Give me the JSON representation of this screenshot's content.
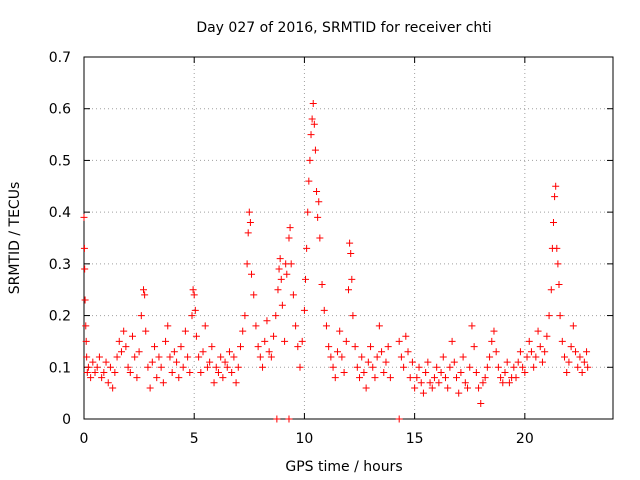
{
  "chart_data": {
    "type": "scatter",
    "title": "Day 027 of 2016, SRMTID for receiver chti",
    "xlabel": "GPS time / hours",
    "ylabel": "SRMTID / TECUs",
    "xlim": [
      0,
      24
    ],
    "ylim": [
      0,
      0.7
    ],
    "grid": true,
    "marker": "+",
    "color": "#ff0000",
    "xticks": [
      0,
      5,
      10,
      15,
      20
    ],
    "xtick_labels": [
      "0",
      "5",
      "10",
      "15",
      "20"
    ],
    "yticks": [
      0,
      0.1,
      0.2,
      0.3,
      0.4,
      0.5,
      0.6,
      0.7
    ],
    "ytick_labels": [
      "0",
      "0.1",
      "0.2",
      "0.3",
      "0.4",
      "0.5",
      "0.6",
      "0.7"
    ],
    "series": [
      {
        "name": "SRMTID",
        "points": [
          [
            0.0,
            0.39
          ],
          [
            0.02,
            0.33
          ],
          [
            0.03,
            0.29
          ],
          [
            0.05,
            0.23
          ],
          [
            0.08,
            0.18
          ],
          [
            0.1,
            0.15
          ],
          [
            0.12,
            0.12
          ],
          [
            0.15,
            0.09
          ],
          [
            0.2,
            0.1
          ],
          [
            0.3,
            0.08
          ],
          [
            0.4,
            0.11
          ],
          [
            0.5,
            0.09
          ],
          [
            0.6,
            0.1
          ],
          [
            0.7,
            0.12
          ],
          [
            0.8,
            0.08
          ],
          [
            0.9,
            0.09
          ],
          [
            1.0,
            0.11
          ],
          [
            1.1,
            0.07
          ],
          [
            1.2,
            0.1
          ],
          [
            1.3,
            0.06
          ],
          [
            1.4,
            0.09
          ],
          [
            1.5,
            0.12
          ],
          [
            1.6,
            0.15
          ],
          [
            1.7,
            0.13
          ],
          [
            1.8,
            0.17
          ],
          [
            1.9,
            0.14
          ],
          [
            2.0,
            0.1
          ],
          [
            2.1,
            0.09
          ],
          [
            2.2,
            0.16
          ],
          [
            2.3,
            0.12
          ],
          [
            2.4,
            0.08
          ],
          [
            2.5,
            0.13
          ],
          [
            2.6,
            0.2
          ],
          [
            2.7,
            0.25
          ],
          [
            2.75,
            0.24
          ],
          [
            2.8,
            0.17
          ],
          [
            2.9,
            0.1
          ],
          [
            3.0,
            0.06
          ],
          [
            3.1,
            0.11
          ],
          [
            3.2,
            0.14
          ],
          [
            3.3,
            0.08
          ],
          [
            3.4,
            0.12
          ],
          [
            3.5,
            0.1
          ],
          [
            3.6,
            0.07
          ],
          [
            3.7,
            0.15
          ],
          [
            3.8,
            0.18
          ],
          [
            3.9,
            0.12
          ],
          [
            4.0,
            0.09
          ],
          [
            4.1,
            0.13
          ],
          [
            4.2,
            0.11
          ],
          [
            4.3,
            0.08
          ],
          [
            4.4,
            0.14
          ],
          [
            4.5,
            0.1
          ],
          [
            4.6,
            0.17
          ],
          [
            4.7,
            0.12
          ],
          [
            4.8,
            0.09
          ],
          [
            4.9,
            0.2
          ],
          [
            4.95,
            0.25
          ],
          [
            5.0,
            0.24
          ],
          [
            5.05,
            0.21
          ],
          [
            5.1,
            0.16
          ],
          [
            5.2,
            0.12
          ],
          [
            5.3,
            0.09
          ],
          [
            5.4,
            0.13
          ],
          [
            5.5,
            0.18
          ],
          [
            5.6,
            0.1
          ],
          [
            5.7,
            0.11
          ],
          [
            5.8,
            0.14
          ],
          [
            5.9,
            0.07
          ],
          [
            6.0,
            0.1
          ],
          [
            6.1,
            0.09
          ],
          [
            6.2,
            0.12
          ],
          [
            6.3,
            0.08
          ],
          [
            6.4,
            0.11
          ],
          [
            6.5,
            0.1
          ],
          [
            6.6,
            0.13
          ],
          [
            6.7,
            0.09
          ],
          [
            6.8,
            0.12
          ],
          [
            6.9,
            0.07
          ],
          [
            7.0,
            0.1
          ],
          [
            7.1,
            0.14
          ],
          [
            7.2,
            0.17
          ],
          [
            7.3,
            0.2
          ],
          [
            7.4,
            0.3
          ],
          [
            7.45,
            0.36
          ],
          [
            7.5,
            0.4
          ],
          [
            7.55,
            0.38
          ],
          [
            7.6,
            0.28
          ],
          [
            7.7,
            0.24
          ],
          [
            7.8,
            0.18
          ],
          [
            7.9,
            0.14
          ],
          [
            8.0,
            0.12
          ],
          [
            8.1,
            0.1
          ],
          [
            8.2,
            0.15
          ],
          [
            8.3,
            0.19
          ],
          [
            8.4,
            0.13
          ],
          [
            8.5,
            0.12
          ],
          [
            8.6,
            0.16
          ],
          [
            8.7,
            0.2
          ],
          [
            8.8,
            0.25
          ],
          [
            8.85,
            0.29
          ],
          [
            8.9,
            0.31
          ],
          [
            8.95,
            0.27
          ],
          [
            9.0,
            0.22
          ],
          [
            9.1,
            0.15
          ],
          [
            9.15,
            0.3
          ],
          [
            9.2,
            0.28
          ],
          [
            9.3,
            0.35
          ],
          [
            9.35,
            0.37
          ],
          [
            9.4,
            0.3
          ],
          [
            9.5,
            0.24
          ],
          [
            9.6,
            0.18
          ],
          [
            9.7,
            0.14
          ],
          [
            9.8,
            0.1
          ],
          [
            9.9,
            0.15
          ],
          [
            10.0,
            0.21
          ],
          [
            10.05,
            0.27
          ],
          [
            10.1,
            0.33
          ],
          [
            10.15,
            0.4
          ],
          [
            10.2,
            0.46
          ],
          [
            10.25,
            0.5
          ],
          [
            10.3,
            0.55
          ],
          [
            10.35,
            0.58
          ],
          [
            10.4,
            0.61
          ],
          [
            10.45,
            0.57
          ],
          [
            10.5,
            0.52
          ],
          [
            10.55,
            0.44
          ],
          [
            10.6,
            0.39
          ],
          [
            10.65,
            0.42
          ],
          [
            10.7,
            0.35
          ],
          [
            10.8,
            0.26
          ],
          [
            10.9,
            0.21
          ],
          [
            11.0,
            0.18
          ],
          [
            11.1,
            0.14
          ],
          [
            11.2,
            0.12
          ],
          [
            11.3,
            0.1
          ],
          [
            11.4,
            0.08
          ],
          [
            11.5,
            0.13
          ],
          [
            11.6,
            0.17
          ],
          [
            11.7,
            0.12
          ],
          [
            11.8,
            0.09
          ],
          [
            11.9,
            0.15
          ],
          [
            12.0,
            0.25
          ],
          [
            12.05,
            0.34
          ],
          [
            12.1,
            0.32
          ],
          [
            12.15,
            0.27
          ],
          [
            12.2,
            0.2
          ],
          [
            12.3,
            0.14
          ],
          [
            12.4,
            0.1
          ],
          [
            12.5,
            0.08
          ],
          [
            12.6,
            0.12
          ],
          [
            12.7,
            0.09
          ],
          [
            12.8,
            0.06
          ],
          [
            12.9,
            0.11
          ],
          [
            13.0,
            0.14
          ],
          [
            13.1,
            0.1
          ],
          [
            13.2,
            0.08
          ],
          [
            13.3,
            0.12
          ],
          [
            13.4,
            0.18
          ],
          [
            13.5,
            0.13
          ],
          [
            13.6,
            0.09
          ],
          [
            13.7,
            0.11
          ],
          [
            13.8,
            0.14
          ],
          [
            13.9,
            0.08
          ],
          [
            14.3,
            0.15
          ],
          [
            14.4,
            0.12
          ],
          [
            14.5,
            0.1
          ],
          [
            14.6,
            0.16
          ],
          [
            14.7,
            0.13
          ],
          [
            14.8,
            0.08
          ],
          [
            14.9,
            0.11
          ],
          [
            15.0,
            0.06
          ],
          [
            15.1,
            0.08
          ],
          [
            15.2,
            0.1
          ],
          [
            15.3,
            0.07
          ],
          [
            15.4,
            0.05
          ],
          [
            15.5,
            0.09
          ],
          [
            15.6,
            0.11
          ],
          [
            15.7,
            0.07
          ],
          [
            15.8,
            0.06
          ],
          [
            15.9,
            0.08
          ],
          [
            16.0,
            0.1
          ],
          [
            16.1,
            0.07
          ],
          [
            16.2,
            0.09
          ],
          [
            16.3,
            0.12
          ],
          [
            16.4,
            0.08
          ],
          [
            16.5,
            0.06
          ],
          [
            16.6,
            0.1
          ],
          [
            16.7,
            0.15
          ],
          [
            16.8,
            0.11
          ],
          [
            16.9,
            0.08
          ],
          [
            17.0,
            0.05
          ],
          [
            17.1,
            0.09
          ],
          [
            17.2,
            0.12
          ],
          [
            17.3,
            0.07
          ],
          [
            17.4,
            0.06
          ],
          [
            17.5,
            0.1
          ],
          [
            17.6,
            0.18
          ],
          [
            17.7,
            0.14
          ],
          [
            17.8,
            0.09
          ],
          [
            17.9,
            0.06
          ],
          [
            18.0,
            0.03
          ],
          [
            18.1,
            0.07
          ],
          [
            18.2,
            0.08
          ],
          [
            18.3,
            0.1
          ],
          [
            18.4,
            0.12
          ],
          [
            18.5,
            0.15
          ],
          [
            18.6,
            0.17
          ],
          [
            18.7,
            0.13
          ],
          [
            18.8,
            0.1
          ],
          [
            18.9,
            0.08
          ],
          [
            19.0,
            0.07
          ],
          [
            19.1,
            0.09
          ],
          [
            19.2,
            0.11
          ],
          [
            19.3,
            0.07
          ],
          [
            19.4,
            0.08
          ],
          [
            19.5,
            0.1
          ],
          [
            19.6,
            0.08
          ],
          [
            19.7,
            0.11
          ],
          [
            19.8,
            0.13
          ],
          [
            19.9,
            0.1
          ],
          [
            20.0,
            0.09
          ],
          [
            20.1,
            0.12
          ],
          [
            20.2,
            0.15
          ],
          [
            20.3,
            0.13
          ],
          [
            20.4,
            0.1
          ],
          [
            20.5,
            0.12
          ],
          [
            20.6,
            0.17
          ],
          [
            20.7,
            0.14
          ],
          [
            20.8,
            0.11
          ],
          [
            20.9,
            0.13
          ],
          [
            21.0,
            0.16
          ],
          [
            21.1,
            0.2
          ],
          [
            21.2,
            0.25
          ],
          [
            21.25,
            0.33
          ],
          [
            21.3,
            0.38
          ],
          [
            21.35,
            0.43
          ],
          [
            21.4,
            0.45
          ],
          [
            21.45,
            0.33
          ],
          [
            21.5,
            0.3
          ],
          [
            21.55,
            0.26
          ],
          [
            21.6,
            0.2
          ],
          [
            21.7,
            0.15
          ],
          [
            21.8,
            0.12
          ],
          [
            21.9,
            0.09
          ],
          [
            22.0,
            0.11
          ],
          [
            22.1,
            0.14
          ],
          [
            22.2,
            0.18
          ],
          [
            22.3,
            0.13
          ],
          [
            22.4,
            0.1
          ],
          [
            22.5,
            0.12
          ],
          [
            22.6,
            0.09
          ],
          [
            22.7,
            0.11
          ],
          [
            22.8,
            0.13
          ],
          [
            22.85,
            0.1
          ]
        ]
      }
    ],
    "zero_markers": [
      8.75,
      9.3,
      14.3
    ]
  }
}
